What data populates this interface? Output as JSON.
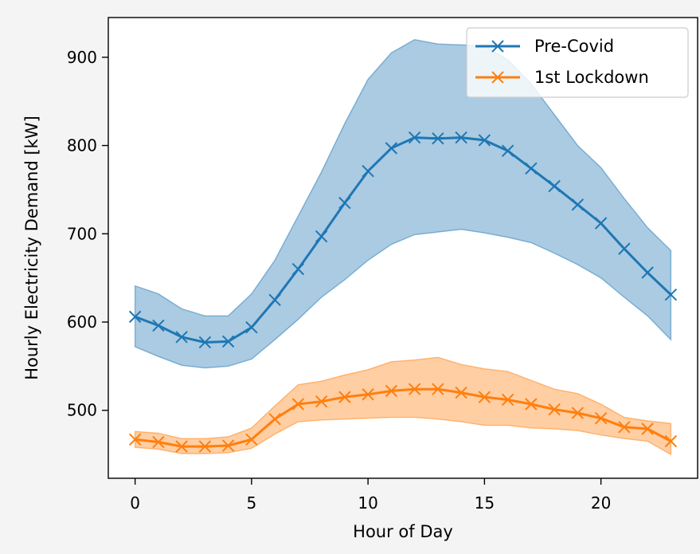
{
  "chart_data": {
    "type": "line",
    "xlabel": "Hour of Day",
    "ylabel": "Hourly Electricity Demand [kW]",
    "xlim": [
      -1.15,
      24.15
    ],
    "ylim": [
      423,
      945
    ],
    "xticks": [
      0,
      5,
      10,
      15,
      20
    ],
    "yticks": [
      500,
      600,
      700,
      800,
      900
    ],
    "grid": false,
    "legend_position": "top-right",
    "x": [
      0,
      1,
      2,
      3,
      4,
      5,
      6,
      7,
      8,
      9,
      10,
      11,
      12,
      13,
      14,
      15,
      16,
      17,
      18,
      19,
      20,
      21,
      22,
      23
    ],
    "series": [
      {
        "name": "Pre-Covid",
        "color": "#1f77b4",
        "marker": "x",
        "values": [
          606,
          596,
          583,
          577,
          578,
          594,
          625,
          660,
          697,
          735,
          771,
          797,
          809,
          808,
          809,
          806,
          794,
          774,
          754,
          733,
          712,
          683,
          656,
          631
        ],
        "upper": [
          641,
          632,
          615,
          607,
          607,
          632,
          670,
          720,
          770,
          825,
          875,
          905,
          920,
          915,
          914,
          913,
          897,
          870,
          835,
          800,
          775,
          740,
          707,
          681
        ],
        "lower": [
          572,
          561,
          551,
          548,
          550,
          558,
          580,
          603,
          628,
          648,
          670,
          688,
          699,
          702,
          705,
          701,
          696,
          690,
          678,
          665,
          650,
          628,
          607,
          580
        ]
      },
      {
        "name": "1st Lockdown",
        "color": "#ff7f0e",
        "marker": "x",
        "values": [
          467,
          464,
          459,
          459,
          460,
          467,
          490,
          507,
          510,
          515,
          518,
          522,
          524,
          524,
          520,
          515,
          512,
          507,
          501,
          497,
          491,
          481,
          479,
          465
        ],
        "upper": [
          476,
          474,
          468,
          468,
          470,
          480,
          505,
          529,
          533,
          540,
          546,
          555,
          557,
          560,
          552,
          547,
          544,
          534,
          524,
          519,
          507,
          492,
          488,
          485
        ],
        "lower": [
          458,
          456,
          451,
          451,
          452,
          457,
          473,
          487,
          489,
          490,
          491,
          492,
          492,
          490,
          487,
          483,
          483,
          480,
          479,
          477,
          472,
          468,
          465,
          450
        ]
      }
    ]
  }
}
